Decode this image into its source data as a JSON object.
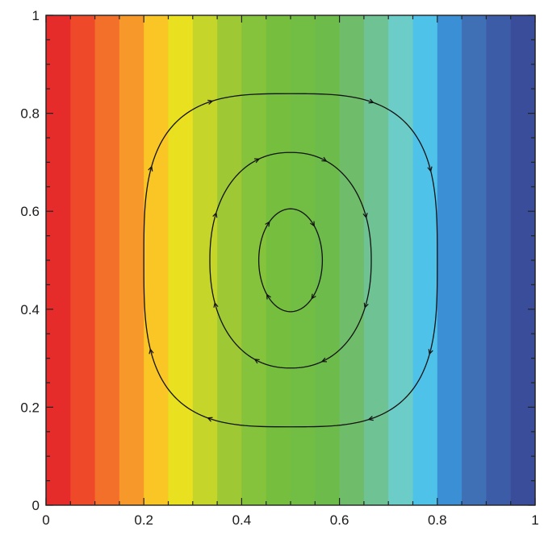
{
  "chart_data": {
    "type": "heatmap",
    "title": "",
    "xlabel": "",
    "ylabel": "",
    "xlim": [
      0,
      1
    ],
    "ylim": [
      0,
      1
    ],
    "grid": false,
    "legend": "none",
    "x_ticks": [
      "0",
      "0.2",
      "0.4",
      "0.6",
      "0.8",
      "1"
    ],
    "x_tick_values": [
      0,
      0.2,
      0.4,
      0.6,
      0.8,
      1
    ],
    "y_ticks": [
      "0",
      "0.2",
      "0.4",
      "0.6",
      "0.8",
      "1"
    ],
    "y_tick_values": [
      0,
      0.2,
      0.4,
      0.6,
      0.8,
      1
    ],
    "contour_bands": [
      {
        "x0": 0.0,
        "x1": 0.05,
        "color": "#e62b2b"
      },
      {
        "x0": 0.05,
        "x1": 0.1,
        "color": "#ee4a2a"
      },
      {
        "x0": 0.1,
        "x1": 0.15,
        "color": "#f3702a"
      },
      {
        "x0": 0.15,
        "x1": 0.2,
        "color": "#f6992a"
      },
      {
        "x0": 0.2,
        "x1": 0.25,
        "color": "#f9c626"
      },
      {
        "x0": 0.25,
        "x1": 0.3,
        "color": "#e9e11f"
      },
      {
        "x0": 0.3,
        "x1": 0.35,
        "color": "#c6d52a"
      },
      {
        "x0": 0.35,
        "x1": 0.4,
        "color": "#9ec935"
      },
      {
        "x0": 0.4,
        "x1": 0.45,
        "color": "#84c33b"
      },
      {
        "x0": 0.45,
        "x1": 0.5,
        "color": "#76be3e"
      },
      {
        "x0": 0.5,
        "x1": 0.55,
        "color": "#72bd44"
      },
      {
        "x0": 0.55,
        "x1": 0.6,
        "color": "#6dbb4b"
      },
      {
        "x0": 0.6,
        "x1": 0.65,
        "color": "#6fbc6a"
      },
      {
        "x0": 0.65,
        "x1": 0.7,
        "color": "#6fc294"
      },
      {
        "x0": 0.7,
        "x1": 0.75,
        "color": "#6ccdc8"
      },
      {
        "x0": 0.75,
        "x1": 0.8,
        "color": "#4fc2ea"
      },
      {
        "x0": 0.8,
        "x1": 0.85,
        "color": "#3b8fd4"
      },
      {
        "x0": 0.85,
        "x1": 0.9,
        "color": "#3f70b6"
      },
      {
        "x0": 0.9,
        "x1": 0.95,
        "color": "#3d5ca7"
      },
      {
        "x0": 0.95,
        "x1": 1.0,
        "color": "#3a4d9b"
      }
    ],
    "streamlines": [
      {
        "name": "outer",
        "cx": 0.5,
        "cy": 0.5,
        "rx": 0.3,
        "ry": 0.34,
        "exponent": 3.2,
        "direction": "clockwise"
      },
      {
        "name": "middle",
        "cx": 0.5,
        "cy": 0.5,
        "rx": 0.165,
        "ry": 0.22,
        "exponent": 2.2,
        "direction": "clockwise"
      },
      {
        "name": "inner",
        "cx": 0.5,
        "cy": 0.5,
        "rx": 0.065,
        "ry": 0.105,
        "exponent": 2.0,
        "direction": "clockwise"
      }
    ],
    "colors": {
      "line": "#111111",
      "frame": "#222222"
    }
  }
}
